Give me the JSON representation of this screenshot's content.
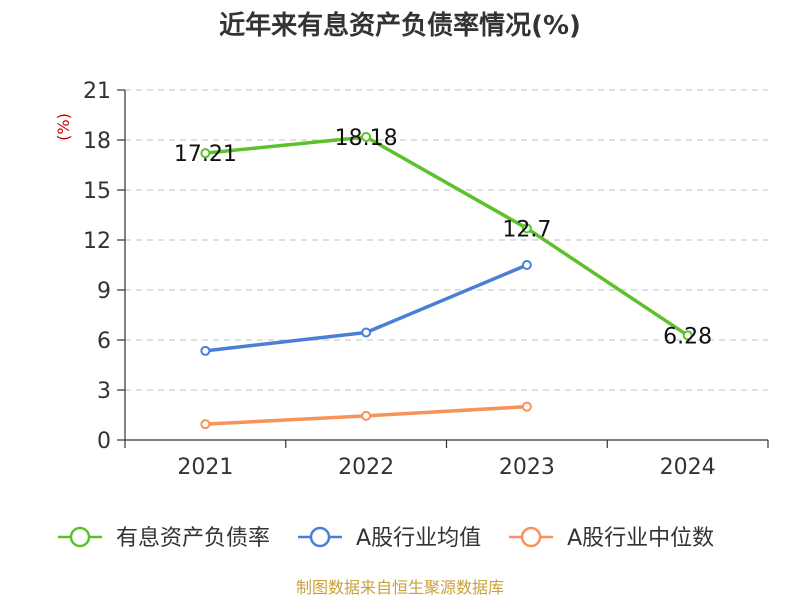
{
  "chart_data": {
    "type": "line",
    "title": "近年来有息资产负债率情况(%)",
    "unit_label": "(%)",
    "categories": [
      "2021",
      "2022",
      "2023",
      "2024"
    ],
    "ylim": [
      0,
      21
    ],
    "yticks": [
      0,
      3,
      6,
      9,
      12,
      15,
      18,
      21
    ],
    "grid": true,
    "legend_position": "bottom",
    "series": [
      {
        "name": "有息资产负债率",
        "color": "#5cc12b",
        "values": [
          17.21,
          18.18,
          12.7,
          6.28
        ],
        "show_labels": true,
        "labels": [
          "17.21",
          "18.18",
          "12.7",
          "6.28"
        ]
      },
      {
        "name": "A股行业均值",
        "color": "#4a7fd8",
        "values": [
          5.35,
          6.45,
          10.5,
          null
        ],
        "show_labels": false
      },
      {
        "name": "A股行业中位数",
        "color": "#f7935a",
        "values": [
          0.95,
          1.45,
          2.0,
          null
        ],
        "show_labels": false
      }
    ]
  },
  "colors": {
    "unit": "#cc0000",
    "source": "#c8a23c",
    "grid": "#cccccc",
    "axis": "#333333"
  },
  "source_text": "制图数据来自恒生聚源数据库"
}
